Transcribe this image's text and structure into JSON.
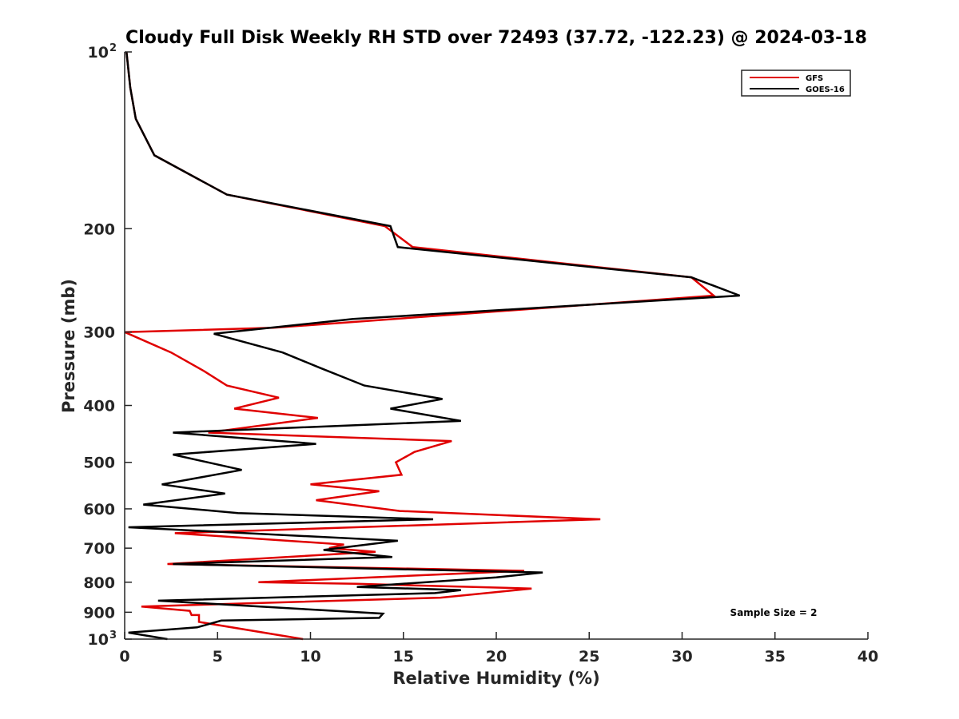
{
  "chart_data": {
    "type": "line",
    "title": "Cloudy Full Disk Weekly RH STD over 72493 (37.72, -122.23) @ 2024-03-18",
    "xlabel": "Relative Humidity (%)",
    "ylabel": "Pressure (mb)",
    "xlim": [
      0,
      40
    ],
    "ylim": [
      100,
      1000
    ],
    "yscale": "log",
    "y_reversed": true,
    "x_ticks": [
      0,
      5,
      10,
      15,
      20,
      25,
      30,
      35,
      40
    ],
    "x_tick_labels": [
      "0",
      "5",
      "10",
      "15",
      "20",
      "25",
      "30",
      "35",
      "40"
    ],
    "y_ticks": [
      100,
      200,
      300,
      400,
      500,
      600,
      700,
      800,
      900,
      1000
    ],
    "y_tick_labels": [
      {
        "base": "10",
        "exp": "2"
      },
      {
        "base": "200"
      },
      {
        "base": "300"
      },
      {
        "base": "400"
      },
      {
        "base": "500"
      },
      {
        "base": "600"
      },
      {
        "base": "700"
      },
      {
        "base": "800"
      },
      {
        "base": "900"
      },
      {
        "base": "10",
        "exp": "3"
      }
    ],
    "legend_position": "top-right",
    "grid": false,
    "annotation": "Sample Size = 2",
    "series": [
      {
        "name": "GFS",
        "color": "#e00000",
        "points": [
          [
            0.1,
            100
          ],
          [
            0.3,
            115
          ],
          [
            0.6,
            130
          ],
          [
            1.6,
            150
          ],
          [
            5.5,
            175
          ],
          [
            14,
            198
          ],
          [
            15.5,
            215
          ],
          [
            30.5,
            242
          ],
          [
            31.7,
            260
          ],
          [
            8,
            295
          ],
          [
            0,
            300
          ],
          [
            2.5,
            325
          ],
          [
            4.3,
            350
          ],
          [
            5.5,
            370
          ],
          [
            8.3,
            388
          ],
          [
            5.9,
            405
          ],
          [
            10.4,
            420
          ],
          [
            4.5,
            445
          ],
          [
            17.6,
            460
          ],
          [
            15.6,
            480
          ],
          [
            14.6,
            500
          ],
          [
            14.9,
            525
          ],
          [
            10,
            545
          ],
          [
            13.7,
            560
          ],
          [
            10.3,
            580
          ],
          [
            14.8,
            605
          ],
          [
            25.6,
            625
          ],
          [
            2.7,
            660
          ],
          [
            11.8,
            690
          ],
          [
            11,
            700
          ],
          [
            13.5,
            710
          ],
          [
            2.3,
            745
          ],
          [
            21.5,
            765
          ],
          [
            7.2,
            800
          ],
          [
            12.5,
            805
          ],
          [
            21.9,
            820
          ],
          [
            17,
            850
          ],
          [
            0.9,
            880
          ],
          [
            3.5,
            895
          ],
          [
            3.6,
            910
          ],
          [
            4,
            910
          ],
          [
            4,
            935
          ],
          [
            9.6,
            1000
          ]
        ]
      },
      {
        "name": "GOES-16",
        "color": "#000000",
        "points": [
          [
            0.1,
            100
          ],
          [
            0.3,
            115
          ],
          [
            0.6,
            130
          ],
          [
            1.6,
            150
          ],
          [
            5.5,
            175
          ],
          [
            14.3,
            198
          ],
          [
            14.7,
            215
          ],
          [
            30.5,
            242
          ],
          [
            33.1,
            260
          ],
          [
            12.3,
            285
          ],
          [
            4.8,
            302
          ],
          [
            8.5,
            325
          ],
          [
            10.5,
            345
          ],
          [
            12.9,
            370
          ],
          [
            17.1,
            390
          ],
          [
            14.3,
            405
          ],
          [
            18.1,
            425
          ],
          [
            2.6,
            445
          ],
          [
            10.3,
            465
          ],
          [
            2.6,
            485
          ],
          [
            6.3,
            515
          ],
          [
            2,
            545
          ],
          [
            5.4,
            565
          ],
          [
            1,
            590
          ],
          [
            6.1,
            610
          ],
          [
            16.6,
            625
          ],
          [
            0.2,
            645
          ],
          [
            14.7,
            680
          ],
          [
            10.7,
            705
          ],
          [
            14.4,
            725
          ],
          [
            2.6,
            745
          ],
          [
            22.5,
            770
          ],
          [
            20,
            785
          ],
          [
            12.5,
            815
          ],
          [
            18.1,
            825
          ],
          [
            16.7,
            835
          ],
          [
            1.8,
            860
          ],
          [
            13.9,
            905
          ],
          [
            13.7,
            920
          ],
          [
            5.2,
            930
          ],
          [
            3.9,
            955
          ],
          [
            0.2,
            975
          ],
          [
            2.3,
            1000
          ]
        ]
      }
    ]
  }
}
